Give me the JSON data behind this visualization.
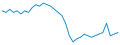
{
  "values": [
    58,
    57,
    59,
    57,
    58,
    56,
    58,
    57,
    60,
    62,
    61,
    63,
    62,
    61,
    59,
    57,
    55,
    50,
    42,
    38,
    40,
    41,
    43,
    42,
    41,
    42,
    43,
    44,
    50,
    42,
    43,
    44
  ],
  "line_color": "#1f8dc8",
  "background_color": "#ffffff",
  "linewidth": 0.7
}
